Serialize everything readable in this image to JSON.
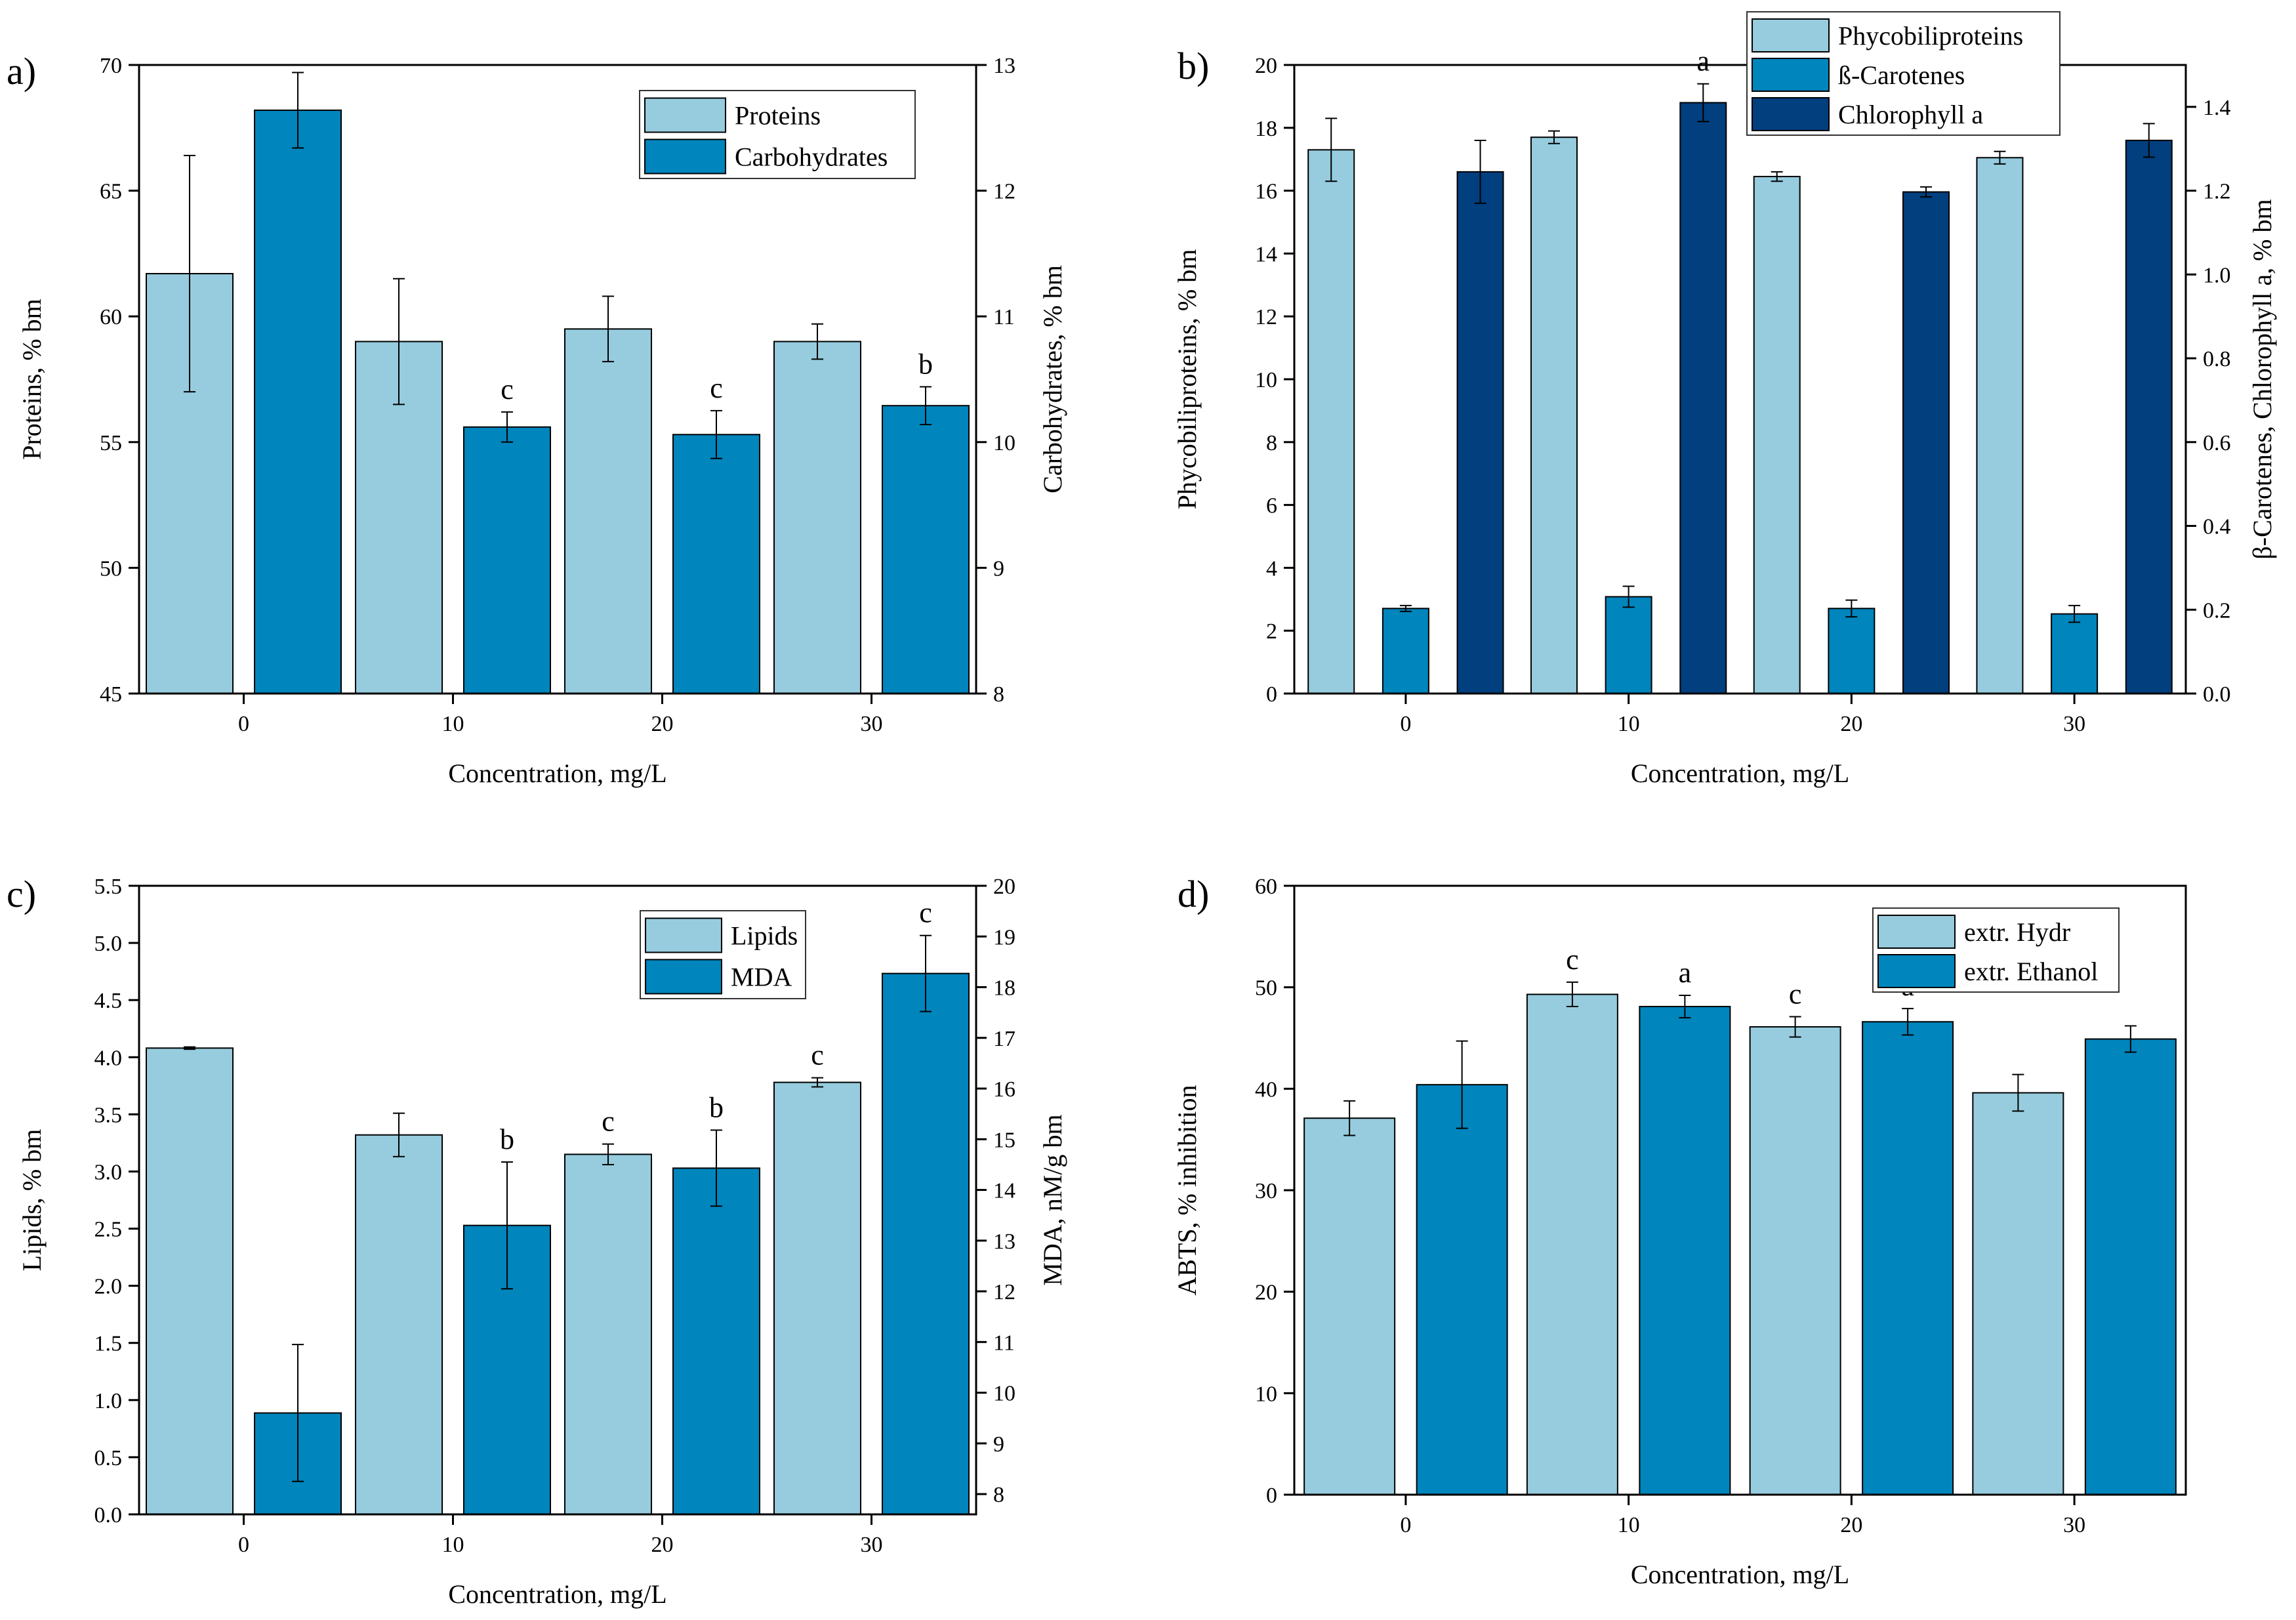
{
  "colors": {
    "light": "#96CCDE",
    "mid": "#0085BC",
    "dark": "#013F7E",
    "stroke": "#000000"
  },
  "chart_data": [
    {
      "type": "bar",
      "panel_label": "a)",
      "xlabel": "Concentration, mg/L",
      "categories": [
        "0",
        "10",
        "20",
        "30"
      ],
      "left_axis": {
        "label": "Proteins, % bm",
        "ylim": [
          45,
          70
        ],
        "ticks": [
          "45",
          "50",
          "55",
          "60",
          "65",
          "70"
        ]
      },
      "right_axis": {
        "label": "Carbohydrates, % bm",
        "ylim": [
          8,
          13
        ],
        "ticks": [
          "8",
          "9",
          "10",
          "11",
          "12",
          "13"
        ]
      },
      "series": [
        {
          "name": "Proteins",
          "axis": "left",
          "color": "light",
          "values": [
            61.7,
            59.0,
            59.5,
            59.0
          ],
          "errors": [
            4.7,
            2.5,
            1.3,
            0.7
          ],
          "sig": [
            "",
            "",
            "",
            ""
          ]
        },
        {
          "name": "Carbohydrates",
          "axis": "right",
          "color": "mid",
          "values": [
            12.64,
            10.12,
            10.06,
            10.29
          ],
          "errors": [
            0.3,
            0.12,
            0.19,
            0.15
          ],
          "sig": [
            "",
            "c",
            "c",
            "b"
          ]
        }
      ],
      "legend": [
        "Proteins",
        "Carbohydrates"
      ],
      "legend_position": "top-right"
    },
    {
      "type": "bar",
      "panel_label": "b)",
      "xlabel": "Concentration, mg/L",
      "categories": [
        "0",
        "10",
        "20",
        "30"
      ],
      "left_axis": {
        "label": "Phycobiliproteins, % bm",
        "ylim": [
          0,
          20
        ],
        "ticks": [
          "0",
          "2",
          "4",
          "6",
          "8",
          "10",
          "12",
          "14",
          "16",
          "18",
          "20"
        ]
      },
      "right_axis": {
        "label": "β-Carotenes, Chlorophyll a, % bm",
        "ylim": [
          0,
          1.5
        ],
        "ticks": [
          "0.0",
          "0.2",
          "0.4",
          "0.6",
          "0.8",
          "1.0",
          "1.2",
          "1.4"
        ]
      },
      "series": [
        {
          "name": "Phycobiliproteins",
          "axis": "left",
          "color": "light",
          "values": [
            17.3,
            17.7,
            16.45,
            17.05
          ],
          "errors": [
            1.0,
            0.2,
            0.15,
            0.2
          ],
          "sig": [
            "",
            "",
            "",
            ""
          ]
        },
        {
          "name": "ß-Carotenes",
          "axis": "right",
          "color": "mid",
          "values": [
            0.203,
            0.231,
            0.203,
            0.19
          ],
          "errors": [
            0.007,
            0.025,
            0.02,
            0.02
          ],
          "sig": [
            "",
            "",
            "",
            ""
          ]
        },
        {
          "name": "Chlorophyll a",
          "axis": "right",
          "color": "dark",
          "values": [
            1.245,
            1.41,
            1.197,
            1.32
          ],
          "errors": [
            0.075,
            0.045,
            0.012,
            0.04
          ],
          "sig": [
            "",
            "a",
            "",
            ""
          ]
        }
      ],
      "legend": [
        "Phycobiliproteins",
        "ß-Carotenes",
        "Chlorophyll a"
      ],
      "legend_position": "top-right"
    },
    {
      "type": "bar",
      "panel_label": "c)",
      "xlabel": "Concentration, mg/L",
      "categories": [
        "0",
        "10",
        "20",
        "30"
      ],
      "left_axis": {
        "label": "Lipids, % bm",
        "ylim": [
          0,
          5.5
        ],
        "ticks": [
          "0.0",
          "0.5",
          "1.0",
          "1.5",
          "2.0",
          "2.5",
          "3.0",
          "3.5",
          "4.0",
          "4.5",
          "5.0",
          "5.5"
        ]
      },
      "right_axis": {
        "label": "MDA, nM/g bm",
        "ylim": [
          7.6,
          20
        ],
        "ticks": [
          "8",
          "9",
          "10",
          "11",
          "12",
          "13",
          "14",
          "15",
          "16",
          "17",
          "18",
          "19",
          "20"
        ]
      },
      "series": [
        {
          "name": "Lipids",
          "axis": "left",
          "color": "light",
          "values": [
            4.08,
            3.32,
            3.15,
            3.78
          ],
          "errors": [
            0.01,
            0.19,
            0.09,
            0.04
          ],
          "sig": [
            "",
            "",
            "c",
            "c"
          ]
        },
        {
          "name": "MDA",
          "axis": "right",
          "color": "mid",
          "values": [
            9.6,
            13.3,
            14.43,
            18.27
          ],
          "errors": [
            1.35,
            1.25,
            0.75,
            0.75
          ],
          "sig": [
            "",
            "b",
            "b",
            "c"
          ]
        }
      ],
      "legend": [
        "Lipids",
        "MDA"
      ],
      "legend_position": "top-right"
    },
    {
      "type": "bar",
      "panel_label": "d)",
      "xlabel": "Concentration, mg/L",
      "categories": [
        "0",
        "10",
        "20",
        "30"
      ],
      "left_axis": {
        "label": "ABTS, % inhibition",
        "ylim": [
          0,
          60
        ],
        "ticks": [
          "0",
          "10",
          "20",
          "30",
          "40",
          "50",
          "60"
        ]
      },
      "series": [
        {
          "name": "extr. Hydr",
          "axis": "left",
          "color": "light",
          "values": [
            37.1,
            49.3,
            46.1,
            39.6
          ],
          "errors": [
            1.7,
            1.2,
            1.0,
            1.8
          ],
          "sig": [
            "",
            "c",
            "c",
            ""
          ]
        },
        {
          "name": "extr. Ethanol",
          "axis": "left",
          "color": "mid",
          "values": [
            40.4,
            48.1,
            46.6,
            44.9
          ],
          "errors": [
            4.3,
            1.1,
            1.3,
            1.3
          ],
          "sig": [
            "",
            "a",
            "a",
            ""
          ]
        }
      ],
      "legend": [
        "extr. Hydr",
        "extr. Ethanol"
      ],
      "legend_position": "top-right"
    }
  ]
}
